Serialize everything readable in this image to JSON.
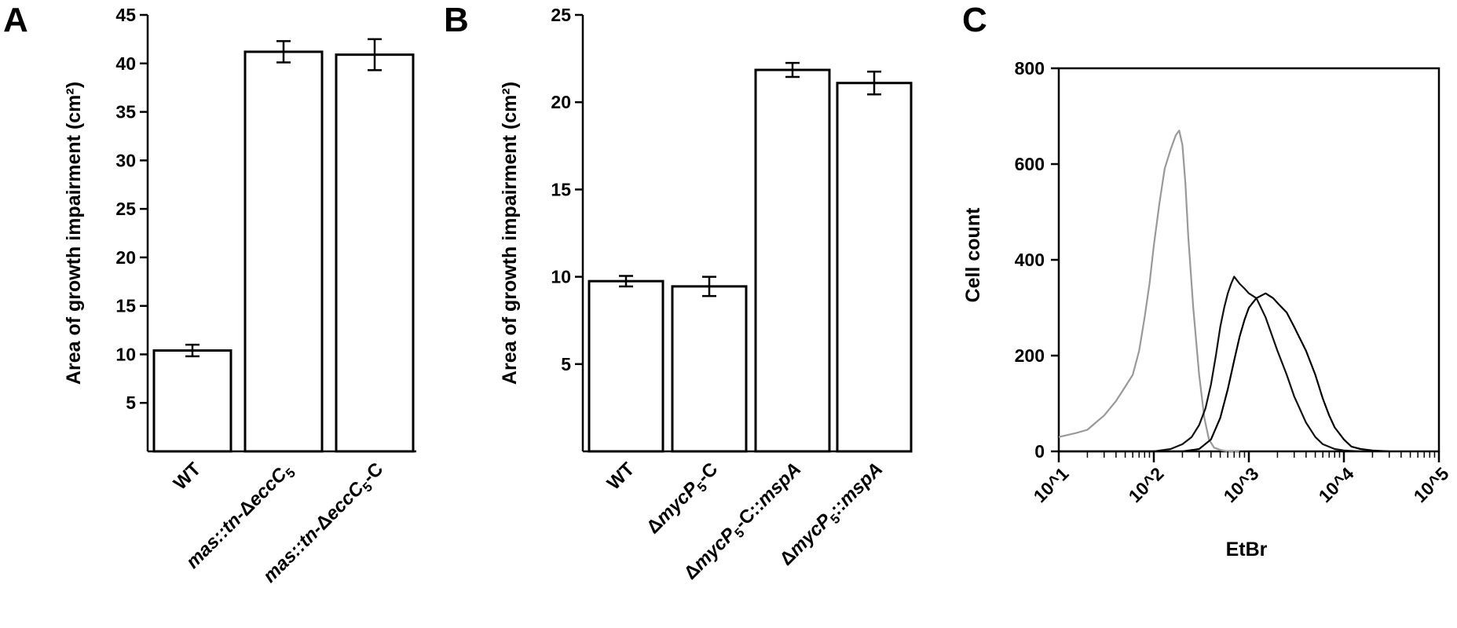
{
  "panels": {
    "A": {
      "letter": "A"
    },
    "B": {
      "letter": "B"
    },
    "C": {
      "letter": "C"
    }
  },
  "chart_data": [
    {
      "panel": "A",
      "type": "bar",
      "ylabel": "Area of growth impairment (cm²)",
      "ylim": [
        0,
        45
      ],
      "yticks": [
        5,
        10,
        15,
        20,
        25,
        30,
        35,
        40,
        45
      ],
      "ytick_labels": [
        "5",
        "10",
        "15",
        "20",
        "25",
        "30",
        "35",
        "40",
        "45"
      ],
      "categories": [
        "WT",
        "mas::tn-ΔeccC5",
        "mas::tn-ΔeccC5-C"
      ],
      "values": [
        10.4,
        41.2,
        40.9
      ],
      "errors": [
        0.6,
        1.1,
        1.6
      ],
      "bar_color": "#ffffff",
      "edge_color": "#000000"
    },
    {
      "panel": "B",
      "type": "bar",
      "ylabel": "Area of growth impairment (cm²)",
      "ylim": [
        0,
        25
      ],
      "yticks": [
        5,
        10,
        15,
        20,
        25
      ],
      "ytick_labels": [
        "5",
        "10",
        "15",
        "20",
        "25"
      ],
      "categories": [
        "WT",
        "ΔmycP5-C",
        "ΔmycP5-C::mspA",
        "ΔmycP5::mspA"
      ],
      "values": [
        9.75,
        9.45,
        21.85,
        21.1
      ],
      "errors": [
        0.3,
        0.55,
        0.4,
        0.65
      ],
      "bar_color": "#ffffff",
      "edge_color": "#000000"
    },
    {
      "panel": "C",
      "type": "line",
      "xlabel": "EtBr",
      "ylabel": "Cell count",
      "xscale": "log",
      "xlim": [
        10,
        100000
      ],
      "ylim": [
        0,
        800
      ],
      "xticks": [
        10,
        100,
        1000,
        10000,
        100000
      ],
      "xtick_labels": [
        "10^1",
        "10^2",
        "10^3",
        "10^4",
        "10^5"
      ],
      "yticks": [
        0,
        200,
        400,
        600,
        800
      ],
      "ytick_labels": [
        "0",
        "200",
        "400",
        "600",
        "800"
      ],
      "series": [
        {
          "color": "#999999",
          "x": [
            10,
            15,
            20,
            30,
            40,
            50,
            60,
            70,
            80,
            90,
            100,
            115,
            130,
            150,
            170,
            185,
            200,
            215,
            230,
            260,
            300,
            340,
            380,
            430,
            500,
            600,
            800
          ],
          "y": [
            30,
            38,
            45,
            75,
            105,
            135,
            160,
            210,
            280,
            350,
            430,
            520,
            590,
            630,
            660,
            670,
            640,
            560,
            450,
            300,
            160,
            70,
            25,
            8,
            3,
            0,
            0
          ]
        },
        {
          "color": "#111111",
          "x": [
            10,
            100,
            150,
            200,
            250,
            300,
            350,
            400,
            450,
            500,
            550,
            600,
            650,
            700,
            800,
            900,
            1000,
            1200,
            1500,
            2000,
            2500,
            3000,
            4000,
            5000,
            6000,
            8000,
            10000,
            15000
          ],
          "y": [
            0,
            0,
            5,
            15,
            30,
            55,
            90,
            140,
            200,
            260,
            300,
            330,
            350,
            365,
            350,
            340,
            330,
            320,
            280,
            210,
            160,
            115,
            60,
            30,
            15,
            5,
            2,
            0
          ]
        },
        {
          "color": "#000000",
          "x": [
            10,
            200,
            300,
            400,
            500,
            600,
            700,
            800,
            900,
            1000,
            1200,
            1500,
            1800,
            2000,
            2500,
            3000,
            4000,
            5000,
            6000,
            7000,
            8000,
            10000,
            12000,
            15000,
            20000,
            30000
          ],
          "y": [
            0,
            0,
            5,
            25,
            70,
            130,
            190,
            240,
            275,
            300,
            320,
            330,
            320,
            310,
            290,
            260,
            210,
            160,
            110,
            75,
            50,
            25,
            10,
            5,
            2,
            0
          ]
        }
      ]
    }
  ]
}
